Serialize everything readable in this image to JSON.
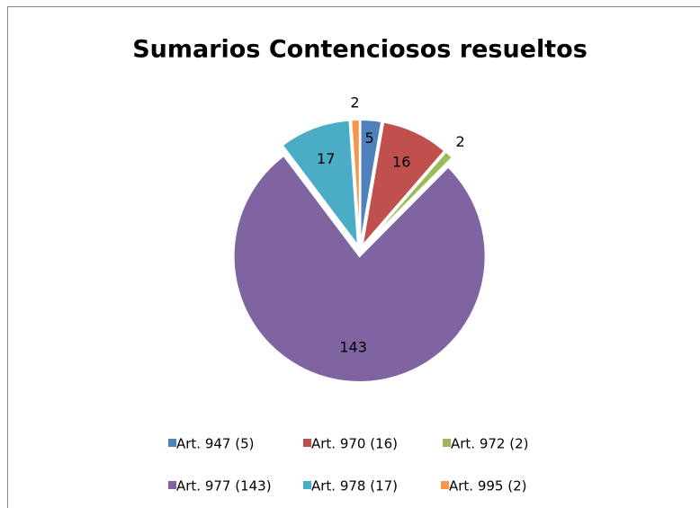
{
  "chart_data": {
    "type": "pie",
    "title": "Sumarios Contenciosos resueltos",
    "categories": [
      "Art. 947 (5)",
      "Art. 970 (16)",
      "Art. 972 (2)",
      "Art. 977 (143)",
      "Art. 978 (17)",
      "Art. 995 (2)"
    ],
    "values": [
      5,
      16,
      2,
      143,
      17,
      2
    ],
    "colors": [
      "#4f81bd",
      "#c0504d",
      "#9bbb59",
      "#8064a2",
      "#4bacc6",
      "#f79646"
    ],
    "legend": "bottom"
  }
}
